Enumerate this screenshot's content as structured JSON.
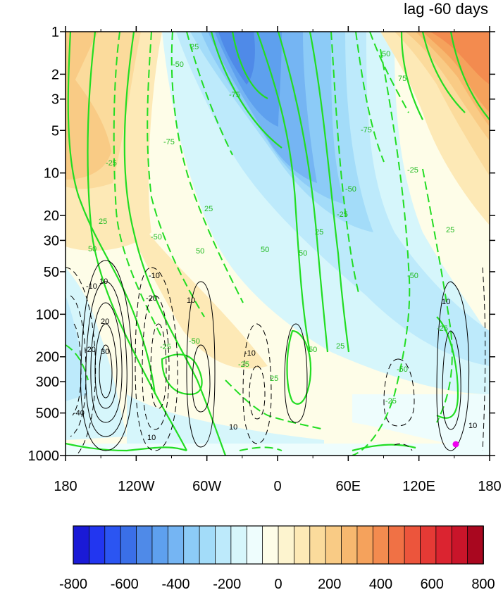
{
  "chart_data": {
    "type": "heatmap",
    "title": "lag -60 days",
    "x_ticks": [
      "180",
      "120W",
      "60W",
      "0",
      "60E",
      "120E",
      "180"
    ],
    "y_ticks": [
      "1",
      "2",
      "3",
      "5",
      "10",
      "20",
      "30",
      "50",
      "100",
      "200",
      "300",
      "500",
      "1000"
    ],
    "y_scale": "log",
    "y_range": [
      1000,
      1
    ],
    "x_range": [
      -180,
      180
    ],
    "colorbar": {
      "labels": [
        "-800",
        "-600",
        "-400",
        "-200",
        "0",
        "200",
        "400",
        "600",
        "800"
      ],
      "range": [
        -800,
        800
      ],
      "colors": [
        "#1a1ad6",
        "#2236f0",
        "#2b55f2",
        "#3a6fe8",
        "#4f8ae8",
        "#5ea0ee",
        "#75b5f3",
        "#8ccbf7",
        "#a3dcf9",
        "#bdeafb",
        "#d6f6fb",
        "#eefdfd",
        "#fefde8",
        "#fdf4cf",
        "#fde9b6",
        "#fbdb9c",
        "#f9cb85",
        "#f7b86f",
        "#f5a25c",
        "#f38b4f",
        "#f07145",
        "#ec553c",
        "#e53a35",
        "#db2430",
        "#c9152a",
        "#a9071f"
      ]
    },
    "green_contour_labels": [
      "-75",
      "-50",
      "-25",
      "25",
      "50",
      "75"
    ],
    "black_contour_labels": [
      "-40",
      "-30",
      "-20",
      "-10",
      "10",
      "20",
      "30"
    ],
    "marker": {
      "lon": 152,
      "pressure": 850,
      "color": "#ee00ee"
    }
  }
}
